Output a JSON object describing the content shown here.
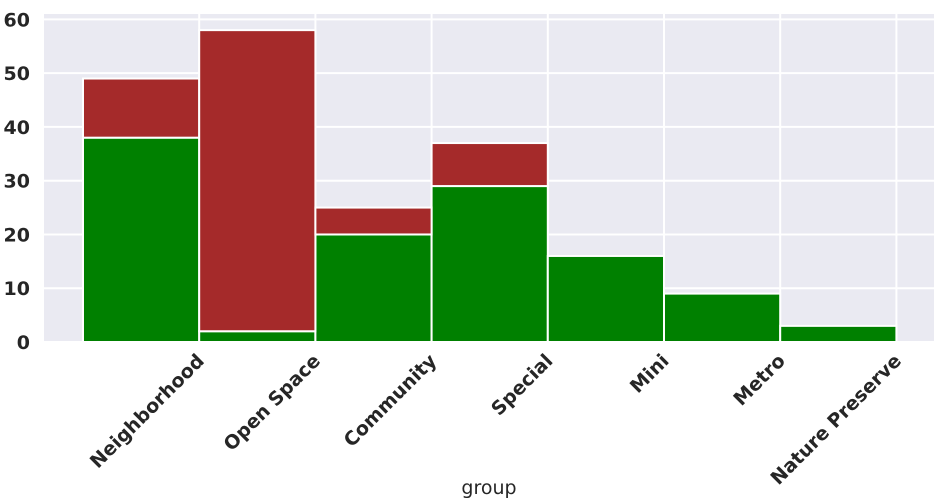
{
  "chart_data": {
    "type": "bar",
    "stacked": true,
    "title": "",
    "xlabel": "group",
    "ylabel": "",
    "ylim": [
      0,
      61
    ],
    "yticks": [
      0,
      10,
      20,
      30,
      40,
      50,
      60
    ],
    "grid": true,
    "categories": [
      "Neighborhood",
      "Open Space",
      "Community",
      "Special",
      "Mini",
      "Metro",
      "Nature Preserve"
    ],
    "series": [
      {
        "values": [
          38,
          2,
          20,
          29,
          16,
          9,
          3
        ],
        "color": "#008000"
      },
      {
        "values": [
          11,
          56,
          5,
          8,
          0,
          0,
          0
        ],
        "color": "#a52a2a"
      }
    ],
    "background_color": "#eaeaf2",
    "grid_color": "#ffffff"
  }
}
